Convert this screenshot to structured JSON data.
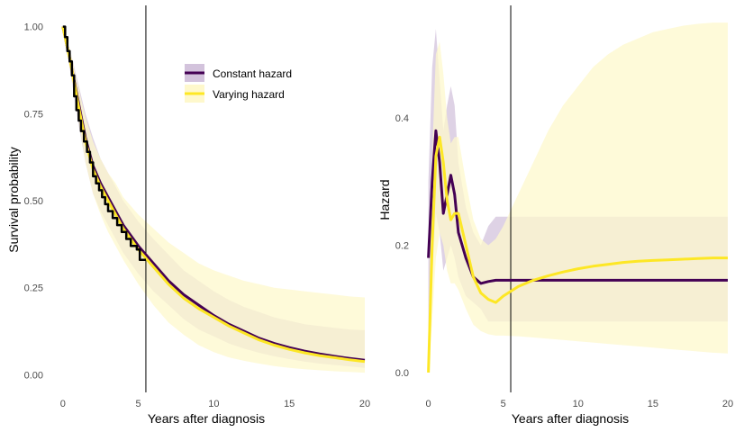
{
  "colors": {
    "constant": "#440154",
    "varying": "#fde725",
    "kaplan_meier": "#000000",
    "constant_band": "#d3c3dc",
    "varying_band": "#fef8cc",
    "overlap_band": "#e0d3bb",
    "vline": "#000000"
  },
  "chart_data": [
    {
      "type": "line",
      "panel": "survival",
      "xlabel": "Years after diagnosis",
      "ylabel": "Survival probability",
      "xlim": [
        -1,
        20
      ],
      "ylim": [
        -0.03,
        1.03
      ],
      "xticks": [
        0,
        5,
        10,
        15,
        20
      ],
      "xtick_labels": [
        "0",
        "5",
        "10",
        "15",
        "20"
      ],
      "yticks": [
        0,
        0.25,
        0.5,
        0.75,
        1
      ],
      "ytick_labels": [
        "0.00",
        "0.25",
        "0.50",
        "0.75",
        "1.00"
      ],
      "grid": false,
      "vline_x": 5.5,
      "legend": {
        "placement": "upper-middle",
        "entries": [
          {
            "series": "constant",
            "label": "Constant hazard"
          },
          {
            "series": "varying",
            "label": "Varying hazard"
          }
        ]
      },
      "x": [
        0,
        0.5,
        1,
        1.5,
        2,
        2.5,
        3,
        3.5,
        4,
        5,
        6,
        7,
        8,
        9,
        10,
        11,
        12,
        13,
        14,
        15,
        16,
        17,
        18,
        19,
        20
      ],
      "series": [
        {
          "id": "constant",
          "values": [
            1.0,
            0.9,
            0.79,
            0.68,
            0.6,
            0.55,
            0.51,
            0.47,
            0.43,
            0.37,
            0.32,
            0.27,
            0.23,
            0.2,
            0.17,
            0.145,
            0.125,
            0.105,
            0.09,
            0.078,
            0.068,
            0.06,
            0.053,
            0.047,
            0.042
          ],
          "lower": [
            1.0,
            0.87,
            0.73,
            0.61,
            0.52,
            0.47,
            0.43,
            0.39,
            0.35,
            0.29,
            0.24,
            0.2,
            0.16,
            0.13,
            0.11,
            0.09,
            0.075,
            0.063,
            0.053,
            0.045,
            0.038,
            0.032,
            0.028,
            0.024,
            0.02
          ],
          "upper": [
            1.0,
            0.93,
            0.84,
            0.75,
            0.68,
            0.62,
            0.58,
            0.54,
            0.5,
            0.44,
            0.39,
            0.345,
            0.3,
            0.27,
            0.24,
            0.215,
            0.195,
            0.18,
            0.165,
            0.155,
            0.145,
            0.14,
            0.135,
            0.13,
            0.128
          ]
        },
        {
          "id": "varying",
          "values": [
            1.0,
            0.9,
            0.78,
            0.67,
            0.59,
            0.54,
            0.5,
            0.46,
            0.42,
            0.36,
            0.31,
            0.26,
            0.22,
            0.19,
            0.165,
            0.14,
            0.12,
            0.1,
            0.085,
            0.073,
            0.063,
            0.055,
            0.049,
            0.043,
            0.038
          ],
          "lower": [
            1.0,
            0.88,
            0.74,
            0.61,
            0.52,
            0.46,
            0.41,
            0.37,
            0.33,
            0.26,
            0.2,
            0.15,
            0.115,
            0.085,
            0.065,
            0.05,
            0.04,
            0.032,
            0.025,
            0.02,
            0.016,
            0.013,
            0.01,
            0.008,
            0.006
          ],
          "upper": [
            1.0,
            0.93,
            0.83,
            0.74,
            0.67,
            0.62,
            0.58,
            0.55,
            0.51,
            0.46,
            0.42,
            0.38,
            0.35,
            0.32,
            0.3,
            0.285,
            0.27,
            0.26,
            0.25,
            0.245,
            0.24,
            0.235,
            0.23,
            0.225,
            0.222
          ]
        },
        {
          "id": "kaplan_meier",
          "step": true,
          "x": [
            0,
            0.15,
            0.3,
            0.45,
            0.6,
            0.75,
            0.9,
            1.05,
            1.2,
            1.4,
            1.6,
            1.8,
            2.0,
            2.2,
            2.4,
            2.6,
            2.8,
            3.0,
            3.3,
            3.6,
            3.9,
            4.2,
            4.5,
            4.9,
            5.1,
            5.5
          ],
          "values": [
            1.0,
            0.97,
            0.93,
            0.9,
            0.86,
            0.8,
            0.76,
            0.73,
            0.7,
            0.67,
            0.64,
            0.61,
            0.57,
            0.55,
            0.53,
            0.51,
            0.49,
            0.47,
            0.45,
            0.43,
            0.41,
            0.39,
            0.37,
            0.36,
            0.33,
            0.33
          ]
        }
      ]
    },
    {
      "type": "line",
      "panel": "hazard",
      "xlabel": "Years after diagnosis",
      "ylabel": "Hazard",
      "xlim": [
        -1,
        20
      ],
      "ylim": [
        -0.02,
        0.56
      ],
      "xticks": [
        0,
        5,
        10,
        15,
        20
      ],
      "xtick_labels": [
        "0",
        "5",
        "10",
        "15",
        "20"
      ],
      "yticks": [
        0,
        0.2,
        0.4
      ],
      "ytick_labels": [
        "0.0",
        "0.2",
        "0.4"
      ],
      "grid": false,
      "vline_x": 5.5,
      "x": [
        0,
        0.25,
        0.5,
        0.75,
        1.0,
        1.25,
        1.5,
        1.75,
        2.0,
        2.5,
        3.0,
        3.5,
        4.0,
        4.5,
        5.0,
        6,
        7,
        8,
        9,
        10,
        11,
        12,
        13,
        14,
        15,
        16,
        17,
        18,
        19,
        20
      ],
      "series": [
        {
          "id": "constant",
          "values": [
            0.18,
            0.3,
            0.38,
            0.33,
            0.25,
            0.28,
            0.31,
            0.28,
            0.22,
            0.18,
            0.15,
            0.14,
            0.143,
            0.145,
            0.145,
            0.145,
            0.145,
            0.145,
            0.145,
            0.145,
            0.145,
            0.145,
            0.145,
            0.145,
            0.145,
            0.145,
            0.145,
            0.145,
            0.145,
            0.145
          ],
          "lower": [
            0.05,
            0.15,
            0.25,
            0.22,
            0.16,
            0.18,
            0.2,
            0.18,
            0.15,
            0.12,
            0.11,
            0.1,
            0.08,
            0.08,
            0.08,
            0.08,
            0.08,
            0.08,
            0.08,
            0.08,
            0.08,
            0.08,
            0.08,
            0.08,
            0.08,
            0.08,
            0.08,
            0.08,
            0.08,
            0.08
          ],
          "upper": [
            0.3,
            0.48,
            0.54,
            0.46,
            0.38,
            0.42,
            0.45,
            0.42,
            0.33,
            0.26,
            0.22,
            0.2,
            0.23,
            0.245,
            0.245,
            0.245,
            0.245,
            0.245,
            0.245,
            0.245,
            0.245,
            0.245,
            0.245,
            0.245,
            0.245,
            0.245,
            0.245,
            0.245,
            0.245,
            0.245
          ]
        },
        {
          "id": "varying",
          "values": [
            0.0,
            0.2,
            0.34,
            0.37,
            0.33,
            0.27,
            0.24,
            0.25,
            0.25,
            0.2,
            0.15,
            0.125,
            0.115,
            0.11,
            0.12,
            0.135,
            0.145,
            0.152,
            0.158,
            0.163,
            0.167,
            0.17,
            0.173,
            0.175,
            0.176,
            0.177,
            0.178,
            0.179,
            0.18,
            0.18
          ],
          "lower": [
            0.0,
            0.08,
            0.18,
            0.22,
            0.2,
            0.16,
            0.14,
            0.14,
            0.13,
            0.1,
            0.075,
            0.065,
            0.06,
            0.058,
            0.058,
            0.057,
            0.055,
            0.053,
            0.051,
            0.049,
            0.047,
            0.045,
            0.043,
            0.041,
            0.039,
            0.037,
            0.035,
            0.033,
            0.031,
            0.03
          ],
          "upper": [
            0.0,
            0.34,
            0.5,
            0.52,
            0.47,
            0.4,
            0.36,
            0.37,
            0.37,
            0.3,
            0.24,
            0.21,
            0.2,
            0.21,
            0.23,
            0.28,
            0.33,
            0.38,
            0.42,
            0.45,
            0.48,
            0.5,
            0.515,
            0.525,
            0.535,
            0.54,
            0.545,
            0.548,
            0.55,
            0.55
          ]
        }
      ]
    }
  ]
}
